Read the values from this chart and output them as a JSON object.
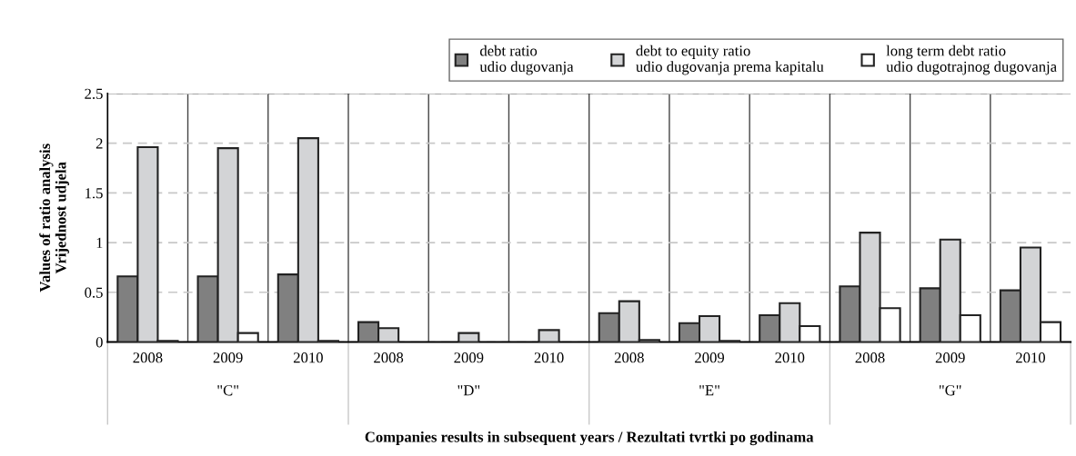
{
  "chart_data": {
    "type": "bar",
    "categories": [
      "2008",
      "2009",
      "2010",
      "2008",
      "2009",
      "2010",
      "2008",
      "2009",
      "2010",
      "2008",
      "2009",
      "2010"
    ],
    "series": [
      {
        "name": "debt ratio\nudio dugovanja",
        "color": "#808080",
        "values": [
          0.66,
          0.66,
          0.68,
          0.2,
          null,
          null,
          0.29,
          0.19,
          0.27,
          0.56,
          0.54,
          0.52
        ]
      },
      {
        "name": "debt to equity ratio\nudio dugovanja prema kapitalu",
        "color": "#d3d4d6",
        "values": [
          1.96,
          1.95,
          2.05,
          0.14,
          0.09,
          0.12,
          0.41,
          0.26,
          0.39,
          1.1,
          1.03,
          0.95
        ]
      },
      {
        "name": "long term debt ratio\nudio dugotrajnog dugovanja",
        "color": "#ffffff",
        "values": [
          0.01,
          0.09,
          0.01,
          null,
          null,
          null,
          0.02,
          0.01,
          0.16,
          0.34,
          0.27,
          0.2
        ]
      }
    ],
    "ylim": [
      0,
      2.5
    ],
    "yticks": [
      0,
      {
        "value": 0.5,
        "label": "0.5"
      },
      1,
      {
        "value": 1.5,
        "label": "1.5"
      },
      2,
      {
        "value": 2.5,
        "label": "2.5"
      }
    ],
    "ylabel": "Values of ratio analysis\nVrijednost udjela",
    "xlabel": "Companies results in subsequent years / Rezultati tvrtki po godinama",
    "annotations": [
      "\"C\"",
      "\"D\"",
      "\"E\"",
      "\"G\""
    ],
    "grid": "y",
    "legend": "top right"
  }
}
